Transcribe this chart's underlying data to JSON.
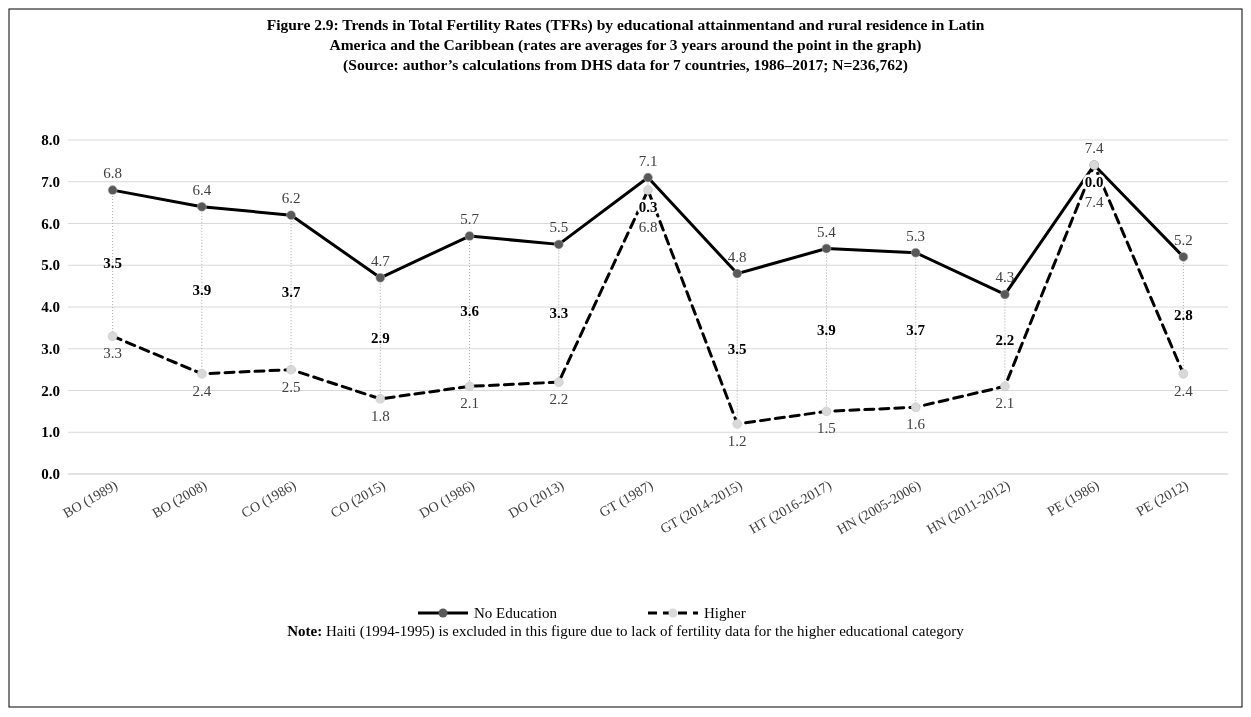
{
  "chart_data": {
    "type": "line",
    "title": "Figure 2.9: Trends in Total Fertility Rates (TFRs) by educational attainmentand and rural residence in Latin America and the Caribbean (rates are averages for 3 years around the point in the graph)",
    "subtitle": "(Source: author’s calculations from DHS data for 7 countries, 1986–2017; N=236,762)",
    "categories": [
      "BO (1989)",
      "BO (2008)",
      "CO (1986)",
      "CO (2015)",
      "DO (1986)",
      "DO (2013)",
      "GT (1987)",
      "GT (2014-2015)",
      "HT (2016-2017)",
      "HN (2005-2006)",
      "HN (2011-2012)",
      "PE (1986)",
      "PE (2012)"
    ],
    "series": [
      {
        "name": "No Education",
        "color": "#000000",
        "line_style": "solid",
        "values": [
          6.8,
          6.4,
          6.2,
          4.7,
          5.7,
          5.5,
          7.1,
          4.8,
          5.4,
          5.3,
          4.3,
          7.4,
          5.2
        ]
      },
      {
        "name": "Higher",
        "color": "#000000",
        "line_style": "dashed",
        "values": [
          3.3,
          2.4,
          2.5,
          1.8,
          2.1,
          2.2,
          6.8,
          1.2,
          1.5,
          1.6,
          2.1,
          7.4,
          2.4
        ]
      }
    ],
    "ylim": [
      0,
      8
    ],
    "yticks": [
      {
        "value": 0,
        "label": "0.0"
      },
      {
        "value": 1,
        "label": "1.0"
      },
      {
        "value": 2,
        "label": "2.0"
      },
      {
        "value": 3,
        "label": "3.0"
      },
      {
        "value": 4,
        "label": "4.0"
      },
      {
        "value": 5,
        "label": "5.0"
      },
      {
        "value": 6,
        "label": "6.0"
      },
      {
        "value": 7,
        "label": "7.0"
      },
      {
        "value": 8,
        "label": "8.0"
      }
    ],
    "grid": "y",
    "legend": "bottom",
    "marker": "circle",
    "data_labels": true,
    "annotations": [
      "3.5",
      "3.9",
      "3.7",
      "2.9",
      "3.6",
      "3.3",
      "0.3",
      "3.5",
      "3.9",
      "3.7",
      "2.2",
      "0.0",
      "2.8",
      "Note: Haiti (1994-1995) is excluded in this figure due to lack of fertility data for the higher educational category"
    ]
  }
}
